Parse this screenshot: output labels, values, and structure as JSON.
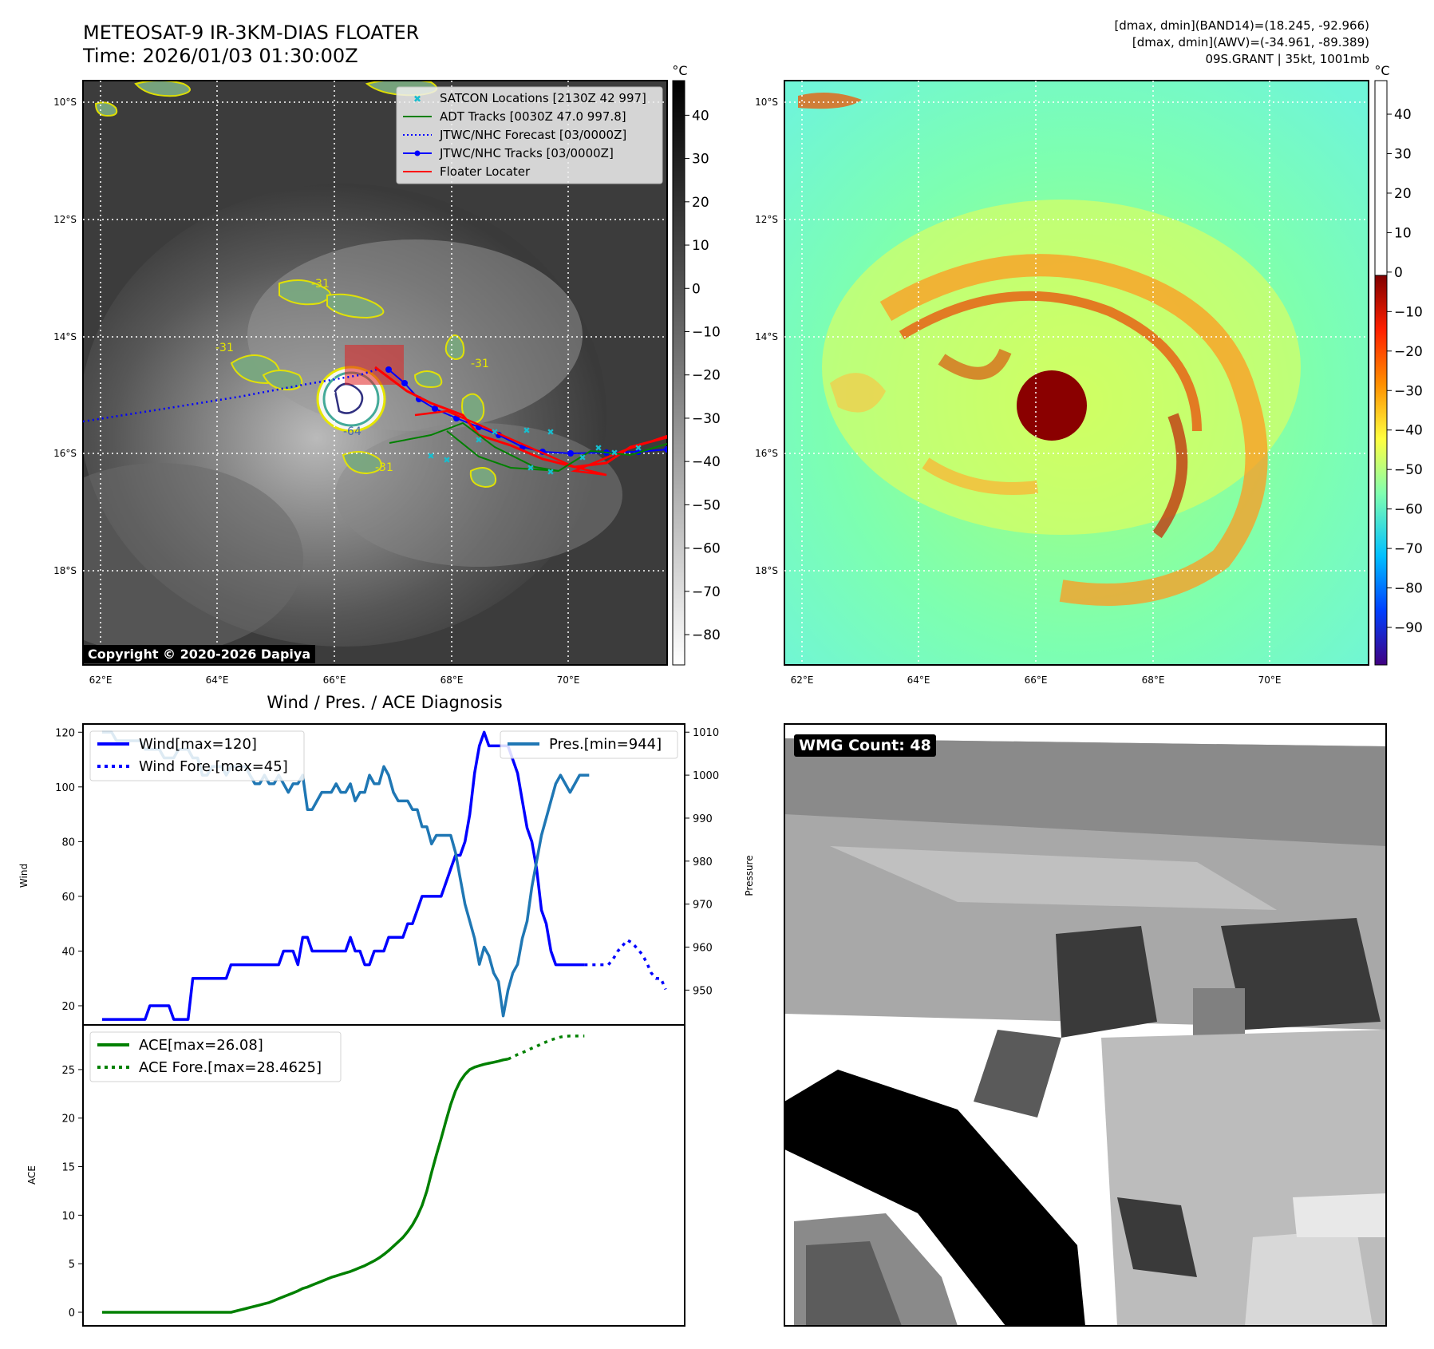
{
  "header": {
    "title_line1": "METEOSAT-9 IR-3KM-DIAS FLOATER",
    "title_line2": "Time: 2026/01/03 01:30:00Z",
    "stats_line1": "[dmax, dmin](BAND14)=(18.245, -92.966)",
    "stats_line2": "[dmax, dmin](AWV)=(-34.961, -89.389)",
    "stats_line3": "09S.GRANT | 35kt, 1001mb"
  },
  "ir_panel": {
    "lat_labels": [
      "10°S",
      "12°S",
      "14°S",
      "16°S",
      "18°S"
    ],
    "lon_labels": [
      "62°E",
      "64°E",
      "66°E",
      "68°E",
      "70°E"
    ],
    "contour_labels": [
      "-31",
      "-64",
      "-31",
      "-31",
      "-31"
    ],
    "copyright": "Copyright © 2020-2026 Dapiya",
    "colorbar_unit": "°C",
    "colorbar_ticks": [
      "40",
      "30",
      "20",
      "10",
      "0",
      "−10",
      "−20",
      "−30",
      "−40",
      "−50",
      "−60",
      "−70",
      "−80"
    ],
    "legend": [
      {
        "label": "SATCON Locations [2130Z 42 997]",
        "color": "#17becf",
        "marker": "x"
      },
      {
        "label": "ADT Tracks [0030Z 47.0 997.8]",
        "color": "#008000",
        "marker": "line"
      },
      {
        "label": "JTWC/NHC Forecast [03/0000Z]",
        "color": "#0000ff",
        "marker": "dotted"
      },
      {
        "label": "JTWC/NHC Tracks [03/0000Z]",
        "color": "#0000ff",
        "marker": "line-dot"
      },
      {
        "label": "Floater Locater",
        "color": "#ff0000",
        "marker": "line"
      }
    ]
  },
  "awv_panel": {
    "lat_labels": [
      "10°S",
      "12°S",
      "14°S",
      "16°S",
      "18°S"
    ],
    "lon_labels": [
      "62°E",
      "64°E",
      "66°E",
      "68°E",
      "70°E"
    ],
    "colorbar_unit": "°C",
    "colorbar_ticks": [
      "40",
      "30",
      "20",
      "10",
      "0",
      "−10",
      "−20",
      "−30",
      "−40",
      "−50",
      "−60",
      "−70",
      "−80",
      "−90"
    ]
  },
  "diag": {
    "title": "Wind / Pres. / ACE Diagnosis",
    "wind_ylabel": "Wind",
    "pres_ylabel": "Pressure",
    "ace_ylabel": "ACE",
    "wind_ticks": [
      "20",
      "40",
      "60",
      "80",
      "100",
      "120"
    ],
    "pres_ticks": [
      "950",
      "960",
      "970",
      "980",
      "990",
      "1000",
      "1010"
    ],
    "ace_ticks": [
      "0",
      "5",
      "10",
      "15",
      "20",
      "25"
    ],
    "legend_wind": "Wind[max=120]",
    "legend_wind_fore": "Wind Fore.[max=45]",
    "legend_pres": "Pres.[min=944]",
    "legend_ace": "ACE[max=26.08]",
    "legend_ace_fore": "ACE Fore.[max=28.4625]"
  },
  "wmg": {
    "label": "WMG Count: 48"
  },
  "chart_data": [
    {
      "type": "line",
      "title": "Wind / Pres. / ACE Diagnosis",
      "ylabel": "Wind",
      "ylim": [
        13,
        123
      ],
      "series": [
        {
          "name": "Wind[max=120]",
          "color": "#0000ff",
          "style": "solid",
          "values": [
            15,
            15,
            15,
            15,
            15,
            15,
            15,
            15,
            15,
            15,
            20,
            20,
            20,
            20,
            20,
            15,
            15,
            15,
            15,
            30,
            30,
            30,
            30,
            30,
            30,
            30,
            30,
            35,
            35,
            35,
            35,
            35,
            35,
            35,
            35,
            35,
            35,
            35,
            40,
            40,
            40,
            35,
            45,
            45,
            40,
            40,
            40,
            40,
            40,
            40,
            40,
            40,
            45,
            40,
            40,
            35,
            35,
            40,
            40,
            40,
            45,
            45,
            45,
            45,
            50,
            50,
            55,
            60,
            60,
            60,
            60,
            60,
            65,
            70,
            75,
            75,
            80,
            90,
            105,
            115,
            120,
            115,
            115,
            115,
            115,
            115,
            110,
            105,
            95,
            85,
            80,
            70,
            55,
            50,
            40,
            35,
            35,
            35,
            35,
            35,
            35,
            35
          ]
        },
        {
          "name": "Wind Fore.[max=45]",
          "color": "#0000ff",
          "style": "dotted",
          "x_offset": 101,
          "values": [
            35,
            35,
            35,
            35,
            35,
            35,
            37,
            40,
            42,
            44,
            43,
            41,
            39,
            36,
            32,
            30,
            30,
            26
          ]
        }
      ]
    },
    {
      "type": "line",
      "ylabel": "Pressure",
      "ylim": [
        941.9,
        1011.9
      ],
      "series": [
        {
          "name": "Pres.[min=944]",
          "color": "#1f77b4",
          "style": "solid",
          "values": [
            1010,
            1010,
            1010,
            1008,
            1008,
            1008,
            1008,
            1008,
            1008,
            1006,
            1006,
            1006,
            1006,
            1004,
            1004,
            1004,
            1006,
            1006,
            1006,
            1004,
            1004,
            1000,
            1000,
            1002,
            1002,
            1002,
            1000,
            1002,
            1002,
            1002,
            1002,
            1000,
            998,
            998,
            1000,
            998,
            998,
            1000,
            998,
            996,
            998,
            998,
            1000,
            992,
            992,
            994,
            996,
            996,
            996,
            998,
            996,
            996,
            998,
            994,
            996,
            996,
            1000,
            998,
            998,
            1002,
            1000,
            996,
            994,
            994,
            994,
            992,
            992,
            988,
            988,
            984,
            986,
            986,
            986,
            986,
            982,
            976,
            970,
            966,
            962,
            956,
            960,
            958,
            954,
            952,
            944,
            950,
            954,
            956,
            962,
            966,
            974,
            980,
            986,
            990,
            994,
            998,
            1000,
            998,
            996,
            998,
            1000,
            1000,
            1000
          ]
        }
      ]
    },
    {
      "type": "line",
      "ylabel": "ACE",
      "ylim": [
        -1.4,
        29.6
      ],
      "series": [
        {
          "name": "ACE[max=26.08]",
          "color": "#008000",
          "style": "solid",
          "values": [
            0,
            0,
            0,
            0,
            0,
            0,
            0,
            0,
            0,
            0,
            0,
            0,
            0,
            0,
            0,
            0,
            0,
            0,
            0,
            0,
            0,
            0,
            0,
            0,
            0,
            0,
            0,
            0,
            0.12,
            0.25,
            0.37,
            0.5,
            0.62,
            0.75,
            0.88,
            1.0,
            1.2,
            1.4,
            1.6,
            1.8,
            2.0,
            2.2,
            2.45,
            2.6,
            2.8,
            3.0,
            3.2,
            3.4,
            3.6,
            3.75,
            3.9,
            4.05,
            4.2,
            4.4,
            4.6,
            4.8,
            5.05,
            5.3,
            5.6,
            5.95,
            6.35,
            6.8,
            7.25,
            7.7,
            8.3,
            9.0,
            9.9,
            11.0,
            12.5,
            14.4,
            16.2,
            17.9,
            19.7,
            21.4,
            22.8,
            23.8,
            24.5,
            25.0,
            25.25,
            25.4,
            25.55,
            25.65,
            25.75,
            25.87,
            26.0,
            26.08
          ]
        },
        {
          "name": "ACE Fore.[max=28.4625]",
          "color": "#008000",
          "style": "dotted",
          "x_offset": 85,
          "values": [
            26.08,
            26.3,
            26.55,
            26.75,
            26.95,
            27.2,
            27.4,
            27.65,
            27.85,
            28.05,
            28.2,
            28.35,
            28.43,
            28.46,
            28.46,
            28.46,
            28.46
          ]
        }
      ]
    }
  ]
}
